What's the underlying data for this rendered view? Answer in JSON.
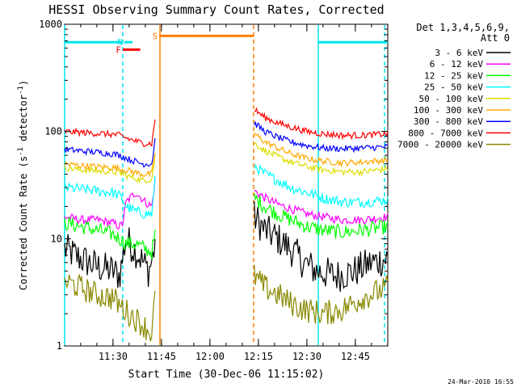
{
  "chart_data": {
    "type": "line",
    "title": "HESSI Observing Summary Count Rates, Corrected",
    "ylabel_parts": [
      "Corrected Count Rate (s",
      "-1",
      " detector",
      "-1",
      ")"
    ],
    "xlabel": "Start Time (30-Dec-06 11:15:02)",
    "yscale": "log",
    "ylim": [
      1,
      1000
    ],
    "y_ticks": [
      {
        "value": 1,
        "label": "1"
      },
      {
        "value": 10,
        "label": "10"
      },
      {
        "value": 100,
        "label": "100"
      },
      {
        "value": 1000,
        "label": "1000"
      }
    ],
    "xlim": [
      0,
      100
    ],
    "x_ticks": [
      {
        "value": 14.97,
        "label": "11:30"
      },
      {
        "value": 29.97,
        "label": "11:45"
      },
      {
        "value": 44.97,
        "label": "12:00"
      },
      {
        "value": 59.97,
        "label": "12:15"
      },
      {
        "value": 74.97,
        "label": "12:30"
      },
      {
        "value": 89.97,
        "label": "12:45"
      }
    ],
    "legend_title_lines": [
      "Det 1,3,4,5,6,9,",
      "Att 0"
    ],
    "legend_position": "right",
    "timestamp": "24-Mar-2010 16:55",
    "gap": [
      28.2,
      58.7
    ],
    "bars": [
      {
        "label": "",
        "x1": 0,
        "x2": 17.5,
        "y": 680,
        "color": "#00e5ee"
      },
      {
        "label": "",
        "x1": 78.5,
        "x2": 100,
        "y": 680,
        "color": "#00e5ee"
      },
      {
        "label": "F",
        "x1": 18,
        "x2": 23.4,
        "y": 580,
        "color": "#ff0000"
      },
      {
        "label": "N",
        "x1": 18.5,
        "x2": 21,
        "y": 680,
        "color": "#00e5ee"
      },
      {
        "label": "S",
        "x1": 29.3,
        "x2": 58.5,
        "y": 780,
        "color": "#ff7f00"
      }
    ],
    "vlines": [
      {
        "x": 0,
        "style": "solid",
        "color": "#00e5ee"
      },
      {
        "x": 18,
        "style": "dashed",
        "color": "#00e5ee"
      },
      {
        "x": 29.5,
        "style": "solid",
        "color": "#ff7f00"
      },
      {
        "x": 58.5,
        "style": "dashed",
        "color": "#ff7f00"
      },
      {
        "x": 78.5,
        "style": "solid",
        "color": "#00e5ee"
      },
      {
        "x": 99,
        "style": "dashed",
        "color": "#00e5ee"
      }
    ],
    "series": [
      {
        "name": "3 - 6 keV",
        "color": "#000000",
        "noise": 0.16,
        "values": [
          [
            0,
            8
          ],
          [
            5,
            6.5
          ],
          [
            10,
            5.5
          ],
          [
            15,
            5
          ],
          [
            17,
            4.5
          ],
          [
            19,
            10
          ],
          [
            23,
            7
          ],
          [
            26,
            5
          ],
          [
            27.5,
            7
          ],
          [
            28,
            10
          ],
          [
            58.7,
            16
          ],
          [
            62,
            12
          ],
          [
            66,
            10
          ],
          [
            70,
            8
          ],
          [
            74,
            6
          ],
          [
            78,
            5
          ],
          [
            84,
            4.5
          ],
          [
            90,
            5
          ],
          [
            95,
            6
          ],
          [
            100,
            6.5
          ]
        ]
      },
      {
        "name": "6 - 12 keV",
        "color": "#ff00ff",
        "noise": 0.04,
        "values": [
          [
            0,
            16
          ],
          [
            5,
            15
          ],
          [
            10,
            15
          ],
          [
            15,
            14
          ],
          [
            17,
            13
          ],
          [
            18,
            14
          ],
          [
            19,
            22
          ],
          [
            22,
            27
          ],
          [
            25,
            22
          ],
          [
            27,
            20
          ],
          [
            28,
            35
          ],
          [
            58.7,
            28
          ],
          [
            62,
            24
          ],
          [
            66,
            21
          ],
          [
            70,
            19
          ],
          [
            75,
            17
          ],
          [
            80,
            16
          ],
          [
            86,
            15
          ],
          [
            92,
            15
          ],
          [
            100,
            16
          ]
        ]
      },
      {
        "name": "12 - 25 keV",
        "color": "#00ff00",
        "noise": 0.07,
        "values": [
          [
            0,
            14
          ],
          [
            5,
            13
          ],
          [
            10,
            12
          ],
          [
            15,
            11
          ],
          [
            17,
            10
          ],
          [
            19,
            9
          ],
          [
            22,
            9
          ],
          [
            25,
            8
          ],
          [
            27,
            7.5
          ],
          [
            28,
            11
          ],
          [
            58.7,
            24
          ],
          [
            62,
            20
          ],
          [
            66,
            17
          ],
          [
            70,
            15
          ],
          [
            75,
            13
          ],
          [
            80,
            12
          ],
          [
            86,
            11.5
          ],
          [
            92,
            12
          ],
          [
            100,
            13
          ]
        ]
      },
      {
        "name": "25 - 50 keV",
        "color": "#00ffff",
        "noise": 0.05,
        "values": [
          [
            0,
            30
          ],
          [
            5,
            29
          ],
          [
            10,
            28
          ],
          [
            15,
            27
          ],
          [
            17,
            25
          ],
          [
            18,
            23
          ],
          [
            19,
            20
          ],
          [
            22,
            18
          ],
          [
            25,
            17
          ],
          [
            27,
            17
          ],
          [
            28,
            35
          ],
          [
            58.7,
            48
          ],
          [
            62,
            40
          ],
          [
            66,
            35
          ],
          [
            70,
            30
          ],
          [
            75,
            27
          ],
          [
            80,
            24
          ],
          [
            86,
            22
          ],
          [
            92,
            22
          ],
          [
            100,
            23
          ]
        ]
      },
      {
        "name": "50 - 100 keV",
        "color": "#dddd00",
        "noise": 0.03,
        "values": [
          [
            0,
            46
          ],
          [
            5,
            44
          ],
          [
            10,
            43
          ],
          [
            15,
            42
          ],
          [
            17,
            41
          ],
          [
            20,
            38
          ],
          [
            24,
            35
          ],
          [
            27,
            36
          ],
          [
            28,
            60
          ],
          [
            58.7,
            78
          ],
          [
            62,
            66
          ],
          [
            66,
            58
          ],
          [
            70,
            52
          ],
          [
            75,
            47
          ],
          [
            80,
            44
          ],
          [
            86,
            42
          ],
          [
            92,
            42
          ],
          [
            100,
            45
          ]
        ]
      },
      {
        "name": "100 - 300 keV",
        "color": "#ffaa00",
        "noise": 0.03,
        "values": [
          [
            0,
            50
          ],
          [
            5,
            48
          ],
          [
            10,
            47
          ],
          [
            15,
            46
          ],
          [
            17,
            45
          ],
          [
            20,
            43
          ],
          [
            24,
            40
          ],
          [
            27,
            40
          ],
          [
            28,
            65
          ],
          [
            58.7,
            95
          ],
          [
            62,
            80
          ],
          [
            66,
            70
          ],
          [
            70,
            62
          ],
          [
            75,
            56
          ],
          [
            80,
            53
          ],
          [
            86,
            51
          ],
          [
            92,
            52
          ],
          [
            100,
            54
          ]
        ]
      },
      {
        "name": "300 - 800 keV",
        "color": "#0000ff",
        "noise": 0.03,
        "values": [
          [
            0,
            68
          ],
          [
            5,
            66
          ],
          [
            10,
            64
          ],
          [
            15,
            62
          ],
          [
            17,
            60
          ],
          [
            20,
            55
          ],
          [
            24,
            50
          ],
          [
            27,
            50
          ],
          [
            28,
            85
          ],
          [
            58.7,
            120
          ],
          [
            62,
            100
          ],
          [
            66,
            88
          ],
          [
            70,
            80
          ],
          [
            75,
            74
          ],
          [
            80,
            70
          ],
          [
            86,
            69
          ],
          [
            92,
            70
          ],
          [
            100,
            72
          ]
        ]
      },
      {
        "name": "800 - 7000 keV",
        "color": "#ff0000",
        "noise": 0.03,
        "values": [
          [
            0,
            100
          ],
          [
            5,
            98
          ],
          [
            10,
            96
          ],
          [
            15,
            94
          ],
          [
            17,
            92
          ],
          [
            20,
            85
          ],
          [
            24,
            78
          ],
          [
            27,
            77
          ],
          [
            28,
            130
          ],
          [
            58.7,
            160
          ],
          [
            62,
            135
          ],
          [
            66,
            120
          ],
          [
            70,
            110
          ],
          [
            75,
            100
          ],
          [
            80,
            95
          ],
          [
            86,
            92
          ],
          [
            92,
            92
          ],
          [
            100,
            95
          ]
        ]
      },
      {
        "name": "7000 - 20000 keV",
        "color": "#888800",
        "noise": 0.12,
        "values": [
          [
            0,
            4
          ],
          [
            5,
            3.5
          ],
          [
            10,
            3
          ],
          [
            15,
            2.8
          ],
          [
            17,
            2.4
          ],
          [
            20,
            2
          ],
          [
            24,
            1.6
          ],
          [
            27,
            1.3
          ],
          [
            28,
            3
          ],
          [
            58.7,
            4.5
          ],
          [
            62,
            3.5
          ],
          [
            66,
            3
          ],
          [
            70,
            2.5
          ],
          [
            74,
            2.2
          ],
          [
            80,
            2
          ],
          [
            86,
            2.2
          ],
          [
            92,
            2.8
          ],
          [
            100,
            3.5
          ]
        ]
      }
    ]
  }
}
